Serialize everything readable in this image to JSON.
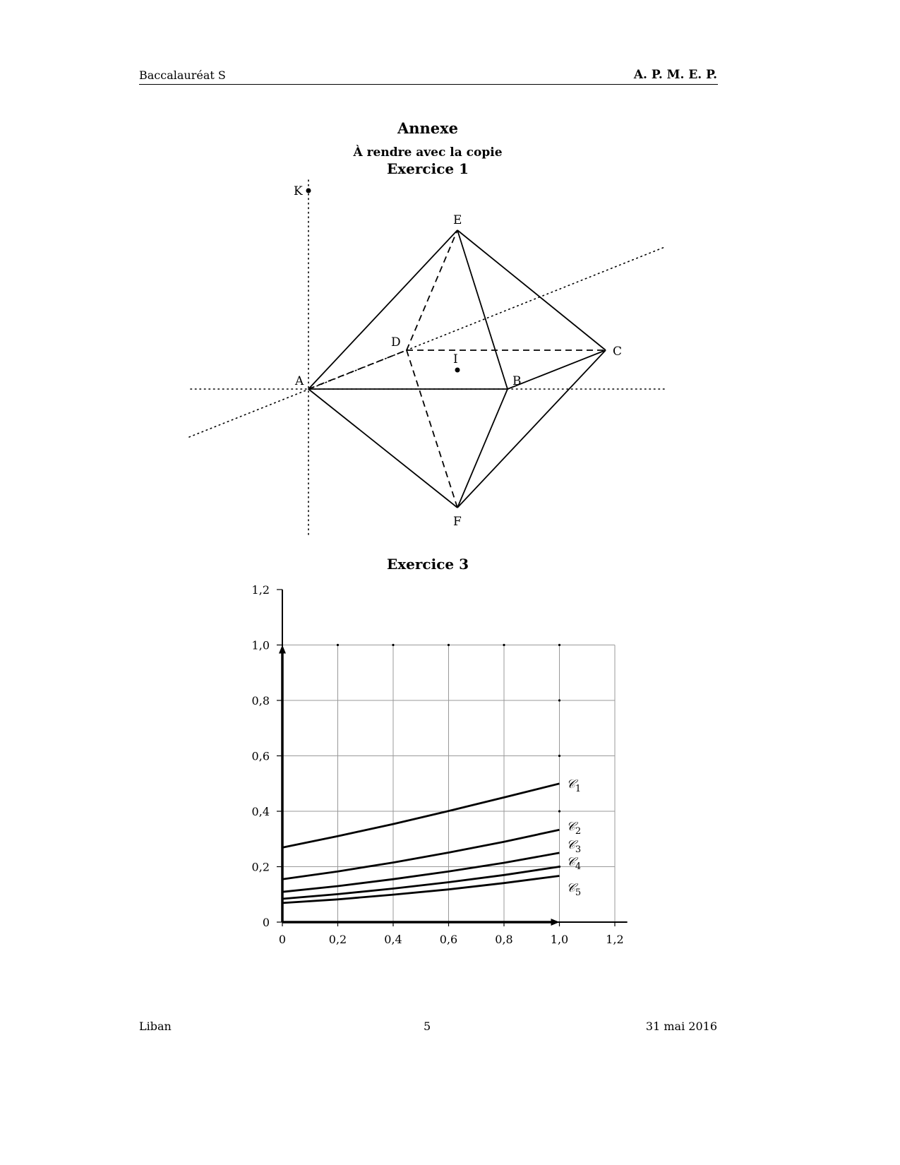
{
  "header": {
    "left": "Baccalauréat S",
    "right": "A. P. M. E. P."
  },
  "titles": {
    "annexe": "Annexe",
    "subtitle": "À rendre avec la copie",
    "exercise1": "Exercice 1",
    "exercise3": "Exercice 3"
  },
  "figure": {
    "points": {
      "K": "K",
      "E": "E",
      "D": "D",
      "C": "C",
      "I": "I",
      "A": "A",
      "B": "B",
      "F": "F"
    },
    "solid_edges": [
      [
        "A",
        "E"
      ],
      [
        "E",
        "C"
      ],
      [
        "E",
        "B"
      ],
      [
        "A",
        "B"
      ],
      [
        "B",
        "C"
      ],
      [
        "A",
        "F"
      ],
      [
        "B",
        "F"
      ],
      [
        "C",
        "F"
      ]
    ],
    "dashed_edges": [
      [
        "A",
        "D"
      ],
      [
        "D",
        "C"
      ],
      [
        "D",
        "E"
      ],
      [
        "D",
        "F"
      ]
    ]
  },
  "footer": {
    "left": "Liban",
    "page": "5",
    "date": "31 mai 2016"
  },
  "chart_data": {
    "type": "line",
    "title": "",
    "xlabel": "",
    "ylabel": "",
    "xlim": [
      0,
      1.2
    ],
    "ylim": [
      0,
      1.2
    ],
    "grid": true,
    "x_ticks": [
      "0",
      "0,2",
      "0,4",
      "0,6",
      "0,8",
      "1,0",
      "1,2"
    ],
    "y_ticks": [
      "0",
      "0,2",
      "0,4",
      "0,6",
      "0,8",
      "1,0",
      "1,2"
    ],
    "x": [
      0,
      0.2,
      0.4,
      0.6,
      0.8,
      1.0
    ],
    "series": [
      {
        "name": "𝒞1",
        "label_sub": "1",
        "values": [
          0.269,
          0.31,
          0.354,
          0.401,
          0.45,
          0.5
        ]
      },
      {
        "name": "𝒞2",
        "label_sub": "2",
        "values": [
          0.155,
          0.183,
          0.215,
          0.251,
          0.29,
          0.333
        ]
      },
      {
        "name": "𝒞3",
        "label_sub": "3",
        "values": [
          0.109,
          0.13,
          0.155,
          0.183,
          0.214,
          0.25
        ]
      },
      {
        "name": "𝒞4",
        "label_sub": "4",
        "values": [
          0.084,
          0.101,
          0.121,
          0.144,
          0.17,
          0.2
        ]
      },
      {
        "name": "𝒞5",
        "label_sub": "5",
        "values": [
          0.069,
          0.082,
          0.099,
          0.118,
          0.141,
          0.167
        ]
      }
    ]
  }
}
